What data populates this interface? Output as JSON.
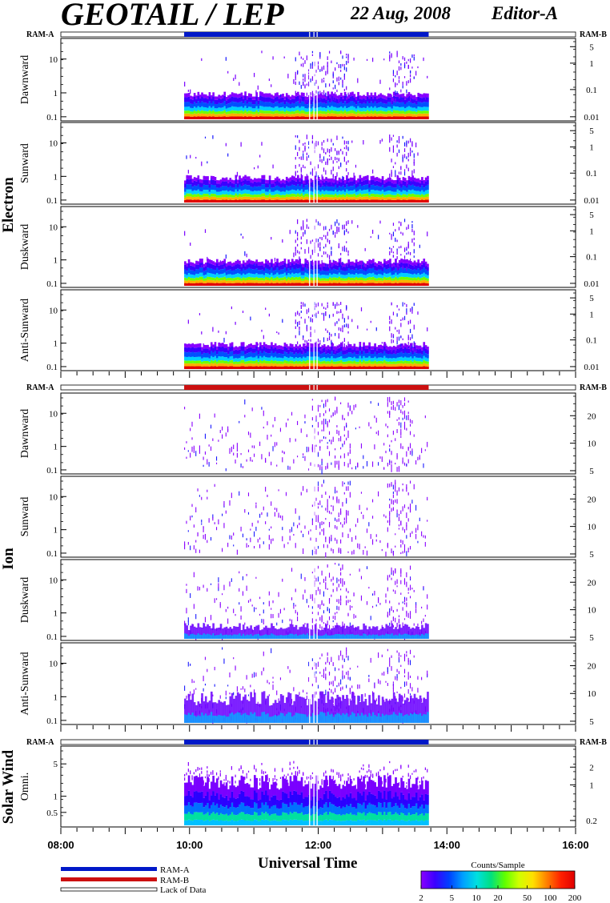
{
  "header": {
    "title": "GEOTAIL / LEP",
    "date": "22 Aug, 2008",
    "editor": "Editor-A"
  },
  "groups": [
    "Electron",
    "Ion",
    "Solar Wind"
  ],
  "ram_a_label": "RAM-A",
  "ram_b_label": "RAM-B",
  "x_axis_title": "Universal Time",
  "legend": {
    "ram_a": "RAM-A",
    "ram_b": "RAM-B",
    "lack": "Lack of Data",
    "colorbar_title": "Counts/Sample",
    "colorbar_ticks": [
      "2",
      "5",
      "10",
      "20",
      "50",
      "100",
      "200"
    ],
    "colors": {
      "ram_a": "#0018c8",
      "ram_b": "#cc1010"
    }
  },
  "chart_data": [
    {
      "type": "heatmap",
      "group": "Electron",
      "ylabel": "Dawnward",
      "left_ticks": [
        "10",
        "1",
        "0.1"
      ],
      "right_ticks": [
        "5",
        "1",
        "0.1",
        "0.01"
      ],
      "x": [
        "08:00",
        "10:00",
        "12:00",
        "14:00",
        "16:00"
      ],
      "data_range_ut": [
        "09:55",
        "13:43"
      ],
      "data_gaps_ut": [
        "11:52",
        "11:56",
        "11:59"
      ],
      "ram_status": "RAM-A"
    },
    {
      "type": "heatmap",
      "group": "Electron",
      "ylabel": "Sunward",
      "left_ticks": [
        "10",
        "1",
        "0.1"
      ],
      "right_ticks": [
        "5",
        "1",
        "0.1",
        "0.01"
      ],
      "x": [
        "08:00",
        "10:00",
        "12:00",
        "14:00",
        "16:00"
      ],
      "data_range_ut": [
        "09:55",
        "13:43"
      ]
    },
    {
      "type": "heatmap",
      "group": "Electron",
      "ylabel": "Duskward",
      "left_ticks": [
        "10",
        "1",
        "0.1"
      ],
      "right_ticks": [
        "5",
        "1",
        "0.1",
        "0.01"
      ],
      "x": [
        "08:00",
        "10:00",
        "12:00",
        "14:00",
        "16:00"
      ],
      "data_range_ut": [
        "09:55",
        "13:43"
      ]
    },
    {
      "type": "heatmap",
      "group": "Electron",
      "ylabel": "Anti-Sunward",
      "left_ticks": [
        "10",
        "1",
        "0.1"
      ],
      "right_ticks": [
        "5",
        "1",
        "0.1",
        "0.01"
      ],
      "x": [
        "08:00",
        "10:00",
        "12:00",
        "14:00",
        "16:00"
      ],
      "data_range_ut": [
        "09:55",
        "13:43"
      ]
    },
    {
      "type": "heatmap",
      "group": "Ion",
      "ylabel": "Dawnward",
      "left_ticks": [
        "10",
        "1",
        "0.1"
      ],
      "right_ticks": [
        "20",
        "10",
        "5"
      ],
      "x": [
        "08:00",
        "10:00",
        "12:00",
        "14:00",
        "16:00"
      ],
      "data_range_ut": [
        "09:55",
        "13:43"
      ],
      "ram_status": "RAM-B"
    },
    {
      "type": "heatmap",
      "group": "Ion",
      "ylabel": "Sunward",
      "left_ticks": [
        "10",
        "1",
        "0.1"
      ],
      "right_ticks": [
        "20",
        "10",
        "5"
      ],
      "x": [
        "08:00",
        "10:00",
        "12:00",
        "14:00",
        "16:00"
      ],
      "data_range_ut": [
        "09:55",
        "13:43"
      ]
    },
    {
      "type": "heatmap",
      "group": "Ion",
      "ylabel": "Duskward",
      "left_ticks": [
        "10",
        "1",
        "0.1"
      ],
      "right_ticks": [
        "20",
        "10",
        "5"
      ],
      "x": [
        "08:00",
        "10:00",
        "12:00",
        "14:00",
        "16:00"
      ],
      "data_range_ut": [
        "09:55",
        "13:43"
      ]
    },
    {
      "type": "heatmap",
      "group": "Ion",
      "ylabel": "Anti-Sunward",
      "left_ticks": [
        "10",
        "1",
        "0.1"
      ],
      "right_ticks": [
        "20",
        "10",
        "5"
      ],
      "x": [
        "08:00",
        "10:00",
        "12:00",
        "14:00",
        "16:00"
      ],
      "data_range_ut": [
        "09:55",
        "13:43"
      ]
    },
    {
      "type": "heatmap",
      "group": "Solar Wind",
      "ylabel": "Omni.",
      "left_ticks": [
        "5",
        "1",
        "0.5"
      ],
      "right_ticks": [
        "2",
        "1",
        "0.2"
      ],
      "x": [
        "08:00",
        "10:00",
        "12:00",
        "14:00",
        "16:00"
      ],
      "data_range_ut": [
        "09:55",
        "13:43"
      ],
      "ram_status": "RAM-A"
    }
  ]
}
